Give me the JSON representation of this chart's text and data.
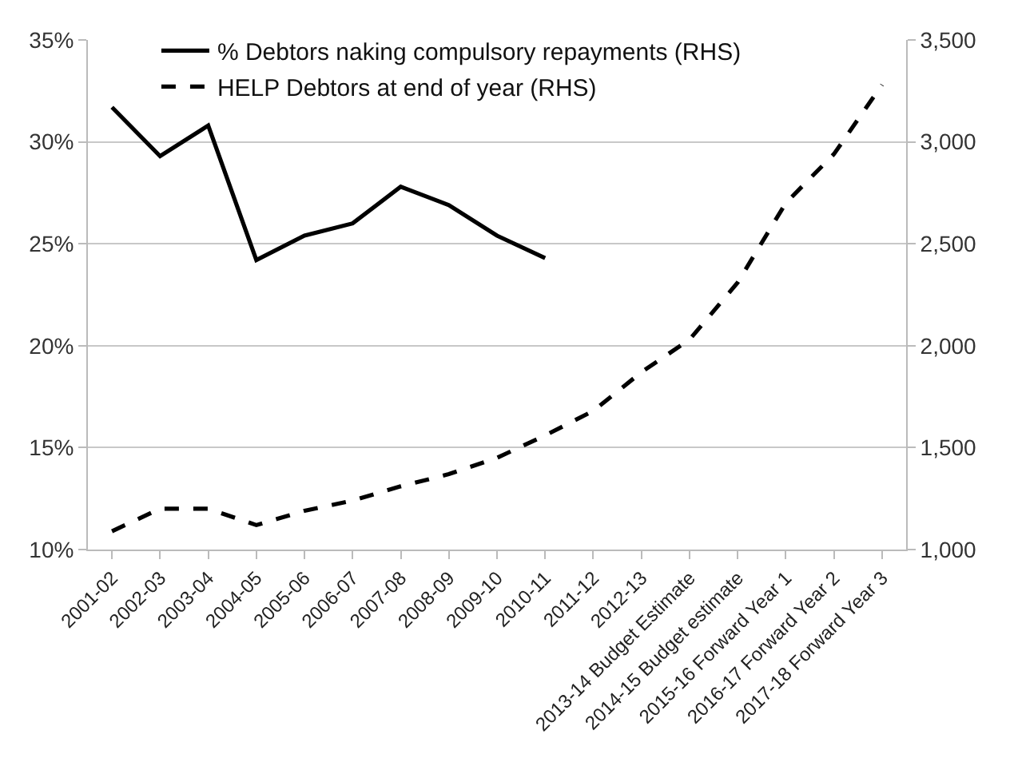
{
  "chart_data": {
    "type": "line",
    "categories": [
      "2001-02",
      "2002-03",
      "2003-04",
      "2004-05",
      "2005-06",
      "2006-07",
      "2007-08",
      "2008-09",
      "2009-10",
      "2010-11",
      "2011-12",
      "2012-13",
      "2013-14 Budget Estimate",
      "2014-15 Budget estimate",
      "2015-16 Forward Year 1",
      "2016-17 Forward Year 2",
      "2017-18 Forward Year 3"
    ],
    "series": [
      {
        "name": "% Debtors naking compulsory repayments (RHS)",
        "color": "#000000",
        "line_style": "solid",
        "values": [
          31.7,
          29.3,
          30.8,
          24.2,
          25.4,
          26.0,
          27.8,
          26.9,
          25.4,
          24.3,
          null,
          null,
          null,
          null,
          null,
          null,
          null
        ]
      },
      {
        "name": "HELP Debtors at end of year (RHS)",
        "color": "#000000",
        "line_style": "dashed",
        "axis": "y2",
        "values": [
          1090,
          1200,
          1200,
          1120,
          1190,
          1240,
          1310,
          1370,
          1450,
          1560,
          1680,
          1870,
          2030,
          2310,
          2700,
          2940,
          3280
        ]
      }
    ],
    "ylim": [
      10,
      35
    ],
    "yticks": [
      {
        "value": 10,
        "label": "10%"
      },
      {
        "value": 15,
        "label": "15%"
      },
      {
        "value": 20,
        "label": "20%"
      },
      {
        "value": 25,
        "label": "25%"
      },
      {
        "value": 30,
        "label": "30%"
      },
      {
        "value": 35,
        "label": "35%"
      }
    ],
    "y2lim": [
      1000,
      3500
    ],
    "y2ticks": [
      {
        "value": 1000,
        "label": "1,000"
      },
      {
        "value": 1500,
        "label": "1,500"
      },
      {
        "value": 2000,
        "label": "2,000"
      },
      {
        "value": 2500,
        "label": "2,500"
      },
      {
        "value": 3000,
        "label": "3,000"
      },
      {
        "value": 3500,
        "label": "3,500"
      }
    ],
    "grid": "y",
    "legend": "top left",
    "marker": "none"
  }
}
